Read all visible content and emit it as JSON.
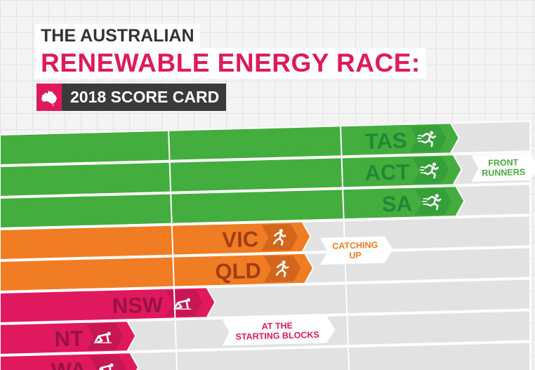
{
  "title": {
    "line1": "THE AUSTRALIAN",
    "line2": "RENEWABLE ENERGY RACE:",
    "subtitle": "2018 SCORE CARD",
    "map_icon": "australia-map-icon"
  },
  "colors": {
    "front": "#43ad3e",
    "front_dark": "#1e8a35",
    "catching": "#f07d23",
    "catching_dark": "#a13d12",
    "starting": "#e0195e",
    "starting_dark": "#9c1143",
    "track": "#e2e2e2",
    "title_dark": "#333333",
    "title_accent": "#e0195e"
  },
  "chart_data": {
    "type": "bar",
    "orientation": "horizontal",
    "categories": [
      "TAS",
      "ACT",
      "SA",
      "VIC",
      "QLD",
      "NSW",
      "NT",
      "WA"
    ],
    "groups": [
      {
        "label": "FRONT RUNNERS",
        "members": [
          "TAS",
          "ACT",
          "SA"
        ],
        "icon": "sprinter-icon"
      },
      {
        "label": "CATCHING UP",
        "members": [
          "VIC",
          "QLD"
        ],
        "icon": "runner-icon"
      },
      {
        "label": "AT THE STARTING BLOCKS",
        "members": [
          "NSW",
          "NT",
          "WA"
        ],
        "icon": "crouching-start-icon"
      }
    ],
    "group_label_lines": [
      [
        "FRONT",
        "RUNNERS"
      ],
      [
        "CATCHING",
        "UP"
      ],
      [
        "AT THE",
        "STARTING BLOCKS"
      ]
    ],
    "values": [
      0.85,
      0.855,
      0.86,
      0.57,
      0.575,
      0.39,
      0.24,
      0.245
    ],
    "value_scale": "fraction of track length",
    "grid": true
  }
}
